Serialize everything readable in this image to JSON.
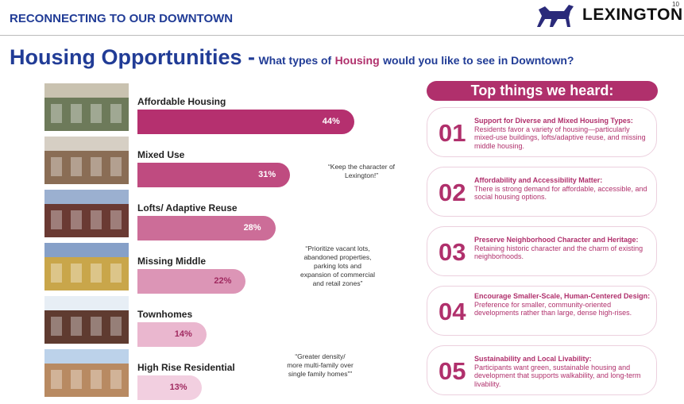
{
  "header": {
    "section": "RECONNECTING TO OUR DOWNTOWN",
    "logo": "LEXINGTON",
    "page_number": "10"
  },
  "title": {
    "main": "Housing Opportunities -",
    "question_start": "What types of",
    "question_highlight": "Housing",
    "question_end": "would you like to see in Downtown?"
  },
  "chart_data": {
    "type": "hbar",
    "categories": [
      "Affordable Housing",
      "Mixed Use",
      "Lofts/ Adaptive Reuse",
      "Missing Middle",
      "Townhomes",
      "High Rise Residential"
    ],
    "values": [
      44,
      31,
      28,
      22,
      14,
      13
    ],
    "value_labels": [
      "44%",
      "31%",
      "28%",
      "22%",
      "14%",
      "13%"
    ],
    "colors": [
      "#b5306f",
      "#bf4b80",
      "#cc6d98",
      "#dc95b6",
      "#eab7cf",
      "#f2cfe0"
    ]
  },
  "quotes": [
    {
      "lines": [
        "“Keep the character of",
        "Lexington!”"
      ]
    },
    {
      "lines": [
        "“Prioritize vacant lots,",
        "abandoned properties,",
        "parking lots and",
        "expansion of commercial",
        "and retail zones”"
      ]
    },
    {
      "lines": [
        "“Greater density/",
        "more multi-family over",
        "single family homes””"
      ]
    }
  ],
  "top_things": {
    "heading": "Top things we heard:",
    "items": [
      {
        "number": "01",
        "title": "Support for Diverse and Mixed Housing Types:",
        "body": "Residents favor a variety of housing—particularly mixed-use buildings, lofts/adaptive reuse, and missing middle housing."
      },
      {
        "number": "02",
        "title": "Affordability and Accessibility Matter:",
        "body": "There is strong demand for affordable, accessible, and social housing options."
      },
      {
        "number": "03",
        "title": "Preserve Neighborhood Character and Heritage:",
        "body": "Retaining historic character and the charm of existing neighborhoods."
      },
      {
        "number": "04",
        "title": "Encourage Smaller-Scale, Human-Centered Design:",
        "body": "Preference for smaller, community-oriented developments rather than large, dense high-rises."
      },
      {
        "number": "05",
        "title": "Sustainability and Local Livability:",
        "body": "Participants want green, sustainable housing and development that supports walkability, and long-term livability."
      }
    ]
  }
}
